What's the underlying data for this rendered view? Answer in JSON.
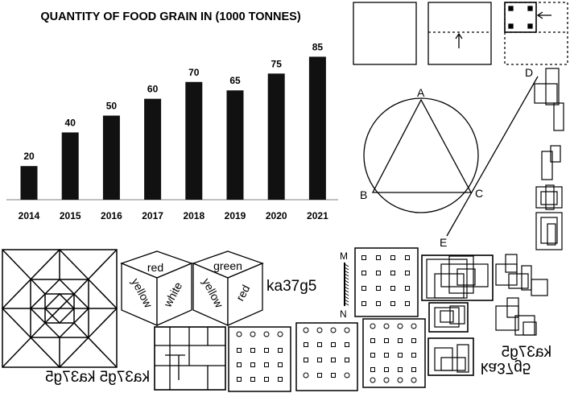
{
  "chart_data": {
    "type": "bar",
    "title": "QUANTITY OF FOOD GRAIN IN (1000 TONNES)",
    "categories": [
      "2014",
      "2015",
      "2016",
      "2017",
      "2018",
      "2019",
      "2020",
      "2021"
    ],
    "values": [
      20,
      40,
      50,
      60,
      70,
      65,
      75,
      85
    ],
    "xlabel": "",
    "ylabel": "",
    "ylim": [
      0,
      90
    ],
    "grid": false,
    "bar_color": "#111111"
  },
  "circle_figure": {
    "point_a": "A",
    "point_b": "B",
    "point_c": "C",
    "point_d": "D",
    "point_e": "E"
  },
  "cube_1": {
    "top": "red",
    "left": "yellow",
    "right": "white"
  },
  "cube_2": {
    "top": "green",
    "left": "yellow",
    "right": "red"
  },
  "text_strings": {
    "code_normal": "ka37g5",
    "code_mirrored_bottom_left": "ka37g5 ka37g5",
    "code_water_top": "ka37g5",
    "code_water_bottom": "ka37g5"
  },
  "mirror_labels": {
    "top": "M",
    "bottom": "N"
  }
}
